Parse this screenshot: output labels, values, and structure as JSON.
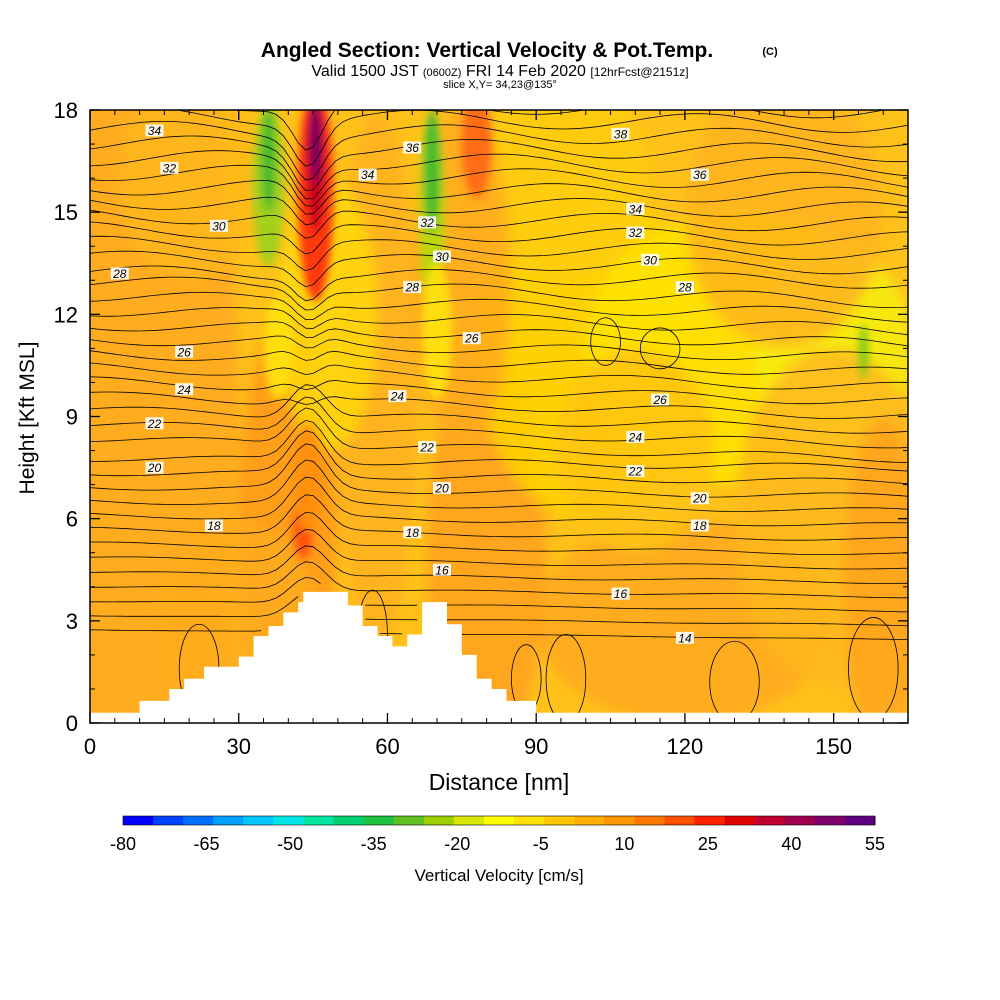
{
  "chart_data": {
    "type": "heatmap",
    "title": "Angled Section: Vertical Velocity & Pot.Temp.",
    "title_mark": "(C)",
    "subtitle": {
      "prefix": "Valid 1500 JST",
      "utc": "(0600Z)",
      "date": "FRI 14 Feb 2020",
      "fcst": "[12hrFcst@2151z]"
    },
    "slice_label": "slice X,Y= 34,23@135°",
    "xlabel": "Distance [nm]",
    "ylabel": "Height [Kft MSL]",
    "xlim": [
      0,
      165
    ],
    "ylim": [
      0,
      18
    ],
    "x_ticks": [
      "0",
      "30",
      "60",
      "90",
      "120",
      "150"
    ],
    "x_tick_values": [
      0,
      30,
      60,
      90,
      120,
      150
    ],
    "y_ticks": [
      "0",
      "3",
      "6",
      "9",
      "12",
      "15",
      "18"
    ],
    "y_tick_values": [
      0,
      3,
      6,
      9,
      12,
      15,
      18
    ],
    "colorbar": {
      "label": "Vertical Velocity [cm/s]",
      "range": [
        -80,
        55
      ],
      "tick_labels": [
        "-80",
        "-65",
        "-50",
        "-35",
        "-20",
        "-5",
        "10",
        "25",
        "40",
        "55"
      ],
      "tick_values": [
        -80,
        -65,
        -50,
        -35,
        -20,
        -5,
        10,
        25,
        40,
        55
      ],
      "colors": [
        "#0000ff",
        "#0040ff",
        "#0070ff",
        "#00a0ff",
        "#00c8ff",
        "#00e6e6",
        "#00e6a0",
        "#00d070",
        "#20c040",
        "#60c020",
        "#a0d000",
        "#d8e800",
        "#ffff00",
        "#ffe000",
        "#ffc800",
        "#ffb000",
        "#ff9800",
        "#ff7800",
        "#ff5000",
        "#ff2000",
        "#e00000",
        "#c00030",
        "#a00050",
        "#800070",
        "#600080"
      ]
    },
    "theta_contours": {
      "levels": [
        14,
        16,
        18,
        20,
        22,
        24,
        26,
        28,
        30,
        32,
        34,
        36,
        38
      ],
      "labels": [
        {
          "text": "34",
          "x": 13,
          "y": 17.4
        },
        {
          "text": "32",
          "x": 16,
          "y": 16.3
        },
        {
          "text": "30",
          "x": 26,
          "y": 14.6
        },
        {
          "text": "28",
          "x": 6,
          "y": 13.2
        },
        {
          "text": "26",
          "x": 19,
          "y": 10.9
        },
        {
          "text": "24",
          "x": 19,
          "y": 9.8
        },
        {
          "text": "22",
          "x": 13,
          "y": 8.8
        },
        {
          "text": "20",
          "x": 13,
          "y": 7.5
        },
        {
          "text": "18",
          "x": 25,
          "y": 5.8
        },
        {
          "text": "36",
          "x": 65,
          "y": 16.9
        },
        {
          "text": "34",
          "x": 56,
          "y": 16.1
        },
        {
          "text": "32",
          "x": 68,
          "y": 14.7
        },
        {
          "text": "30",
          "x": 71,
          "y": 13.7
        },
        {
          "text": "28",
          "x": 65,
          "y": 12.8
        },
        {
          "text": "26",
          "x": 77,
          "y": 11.3
        },
        {
          "text": "24",
          "x": 62,
          "y": 9.6
        },
        {
          "text": "22",
          "x": 68,
          "y": 8.1
        },
        {
          "text": "20",
          "x": 71,
          "y": 6.9
        },
        {
          "text": "18",
          "x": 65,
          "y": 5.6
        },
        {
          "text": "16",
          "x": 71,
          "y": 4.5
        },
        {
          "text": "38",
          "x": 107,
          "y": 17.3
        },
        {
          "text": "36",
          "x": 123,
          "y": 16.1
        },
        {
          "text": "34",
          "x": 110,
          "y": 15.1
        },
        {
          "text": "32",
          "x": 110,
          "y": 14.4
        },
        {
          "text": "30",
          "x": 113,
          "y": 13.6
        },
        {
          "text": "28",
          "x": 120,
          "y": 12.8
        },
        {
          "text": "26",
          "x": 115,
          "y": 9.5
        },
        {
          "text": "24",
          "x": 110,
          "y": 8.4
        },
        {
          "text": "22",
          "x": 110,
          "y": 7.4
        },
        {
          "text": "20",
          "x": 123,
          "y": 6.6
        },
        {
          "text": "18",
          "x": 123,
          "y": 5.8
        },
        {
          "text": "16",
          "x": 107,
          "y": 3.8
        },
        {
          "text": "14",
          "x": 120,
          "y": 2.5
        }
      ]
    },
    "terrain_profile": [
      [
        0,
        0.3
      ],
      [
        10,
        0.3
      ],
      [
        10,
        0.65
      ],
      [
        16,
        0.65
      ],
      [
        16,
        1.0
      ],
      [
        19,
        1.0
      ],
      [
        19,
        1.3
      ],
      [
        23,
        1.3
      ],
      [
        23,
        1.65
      ],
      [
        30,
        1.65
      ],
      [
        30,
        1.95
      ],
      [
        33,
        1.95
      ],
      [
        33,
        2.55
      ],
      [
        36,
        2.55
      ],
      [
        36,
        2.85
      ],
      [
        39,
        2.85
      ],
      [
        39,
        3.25
      ],
      [
        42,
        3.25
      ],
      [
        42,
        3.55
      ],
      [
        43,
        3.55
      ],
      [
        43,
        3.85
      ],
      [
        52,
        3.85
      ],
      [
        52,
        3.45
      ],
      [
        55,
        3.45
      ],
      [
        55,
        2.85
      ],
      [
        58,
        2.85
      ],
      [
        58,
        2.55
      ],
      [
        61,
        2.55
      ],
      [
        61,
        2.25
      ],
      [
        64,
        2.25
      ],
      [
        64,
        2.6
      ],
      [
        67,
        2.6
      ],
      [
        67,
        3.55
      ],
      [
        72,
        3.55
      ],
      [
        72,
        2.9
      ],
      [
        75,
        2.9
      ],
      [
        75,
        2.0
      ],
      [
        78,
        2.0
      ],
      [
        78,
        1.3
      ],
      [
        81,
        1.3
      ],
      [
        81,
        1.0
      ],
      [
        84,
        1.0
      ],
      [
        84,
        0.65
      ],
      [
        90,
        0.65
      ],
      [
        90,
        0.3
      ],
      [
        165,
        0.3
      ]
    ]
  }
}
